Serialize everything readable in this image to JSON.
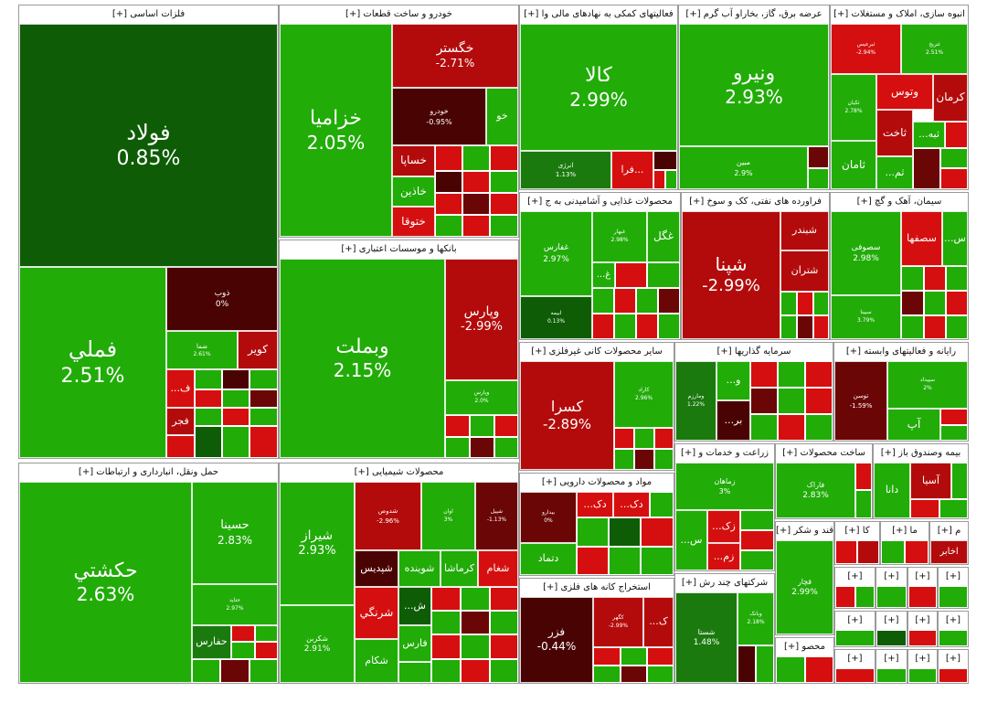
{
  "colors": {
    "green": "#21ac08",
    "dark_green": "#0e5c05",
    "red": "#d50f0f",
    "dark_red": "#6a0606"
  },
  "sectors": {
    "basic_metals": "فلزات اساسی [+]",
    "auto": "خودرو و ساخت قطعات [+]",
    "finance_aux": "فعالیتهای کمکی به نهادهای مالی وا [+]",
    "utilities": "عرضه برق، گاز، بخاراو آب گرم [+]",
    "construction": "انبوه سازی، املاک و مستغلات [+]",
    "banks": "بانکها و موسسات اعتباری [+]",
    "food": "محصولات غذایی و آشامیدنی به ج [+]",
    "refinery": "فراورده های نفتی، کک و سوخ [+]",
    "cement": "سیمان، آهک و گچ [+]",
    "nonmetal": "سایر محصولات کانی غیرفلزی [+]",
    "investment": "سرمایه گذاریها [+]",
    "computer": "رایانه و فعالیتهای وابسته [+]",
    "transport": "حمل ونقل، انبارداری و ارتباطات [+]",
    "chemical": "محصولات شیمیایی [+]",
    "pharma": "مواد و محصولات دارویی [+]",
    "agriculture": "زراعت و خدمات و [+]",
    "other_products": "ساخت محصولات [+]",
    "insurance": "بیمه وصندوق باز [+]",
    "mining": "استخراج کانه های فلزی [+]",
    "multi": "شرکتهای چند رش [+]",
    "sugar": "قند و شکر [+]",
    "sec_ka": "کا [+]",
    "sec_ma": "ما [+]",
    "sec_m": "م [+]",
    "plus": "[+]",
    "plus_mahsu": "محصو [+]",
    "plus_dba": "دبا [+]"
  },
  "tiles": {
    "foolad": {
      "name": "فولاد",
      "pct": "0.85%"
    },
    "fameli": {
      "name": "فملي",
      "pct": "2.51%"
    },
    "zob": {
      "name": "ذوب",
      "pct": "0%"
    },
    "kavir": {
      "name": "کویر"
    },
    "hesa": {
      "name": "ضما",
      "pct": "2.61%"
    },
    "f": {
      "name": "...ف"
    },
    "fajr": {
      "name": "فجر"
    },
    "khazamia": {
      "name": "خزامیا",
      "pct": "2.05%"
    },
    "khegostar": {
      "name": "خگستر",
      "pct": "-2.71%"
    },
    "khodro": {
      "name": "خودرو",
      "pct": "-0.95%"
    },
    "kho": {
      "name": "خو"
    },
    "khsapa": {
      "name": "خساپا"
    },
    "khaneyn": {
      "name": "خاذین"
    },
    "khtoga": {
      "name": "ختوقا"
    },
    "kala": {
      "name": "کالا",
      "pct": "2.99%"
    },
    "enerzhi": {
      "name": "انرژی",
      "pct": "1.13%"
    },
    "fara": {
      "name": "فرا..."
    },
    "vniro": {
      "name": "ونیرو",
      "pct": "2.93%"
    },
    "mobin": {
      "name": "مبین",
      "pct": "2.9%"
    },
    "terbimes": {
      "name": "ثبرعیس",
      "pct": "-2.94%"
    },
    "tasrigh": {
      "name": "ثتریخ",
      "pct": "2.51%"
    },
    "kerman": {
      "name": "کرمان"
    },
    "vetus": {
      "name": "وتوس"
    },
    "tbe": {
      "name": "...ثبه"
    },
    "tahat": {
      "name": "ثاخت"
    },
    "tamam": {
      "name": "ثامان"
    },
    "tm": {
      "name": "...ثم"
    },
    "tkeyn": {
      "name": "ثکیان",
      "pct": "2.78%"
    },
    "vbmelat": {
      "name": "وبملت",
      "pct": "2.15%"
    },
    "vpars": {
      "name": "وپارس",
      "pct": "-2.99%"
    },
    "vbmalat2": {
      "name": "وپارس",
      "pct": "2.0%"
    },
    "ghfars": {
      "name": "غفارس",
      "pct": "2.97%"
    },
    "ghgol": {
      "name": "غگل"
    },
    "behmelt": {
      "name": "غبهار",
      "pct": "2.98%"
    },
    "gh": {
      "name": "...غ"
    },
    "abaneh": {
      "name": "ابیمه",
      "pct": "0.13%"
    },
    "shpana": {
      "name": "شپنا",
      "pct": "-2.99%"
    },
    "shbandar": {
      "name": "شبندر"
    },
    "shtran": {
      "name": "شتران"
    },
    "sfoufi": {
      "name": "سصوفی",
      "pct": "2.98%"
    },
    "sfahan": {
      "name": "سصفها"
    },
    "ss": {
      "name": "...س"
    },
    "sbina": {
      "name": "سبینا",
      "pct": "3.79%"
    },
    "kesra": {
      "name": "کسرا",
      "pct": "-2.89%"
    },
    "kalz": {
      "name": "کاراد",
      "pct": "2.96%"
    },
    "vmarzan": {
      "name": "ومارزم",
      "pct": "1.22%"
    },
    "vo": {
      "name": "...و"
    },
    "br": {
      "name": "...بر"
    },
    "tosn": {
      "name": "توسن",
      "pct": "-1.59%"
    },
    "sepid": {
      "name": "سپیداد",
      "pct": "2%"
    },
    "ap": {
      "name": "آپ"
    },
    "hakshti": {
      "name": "حکشتي",
      "pct": "2.63%"
    },
    "hsina": {
      "name": "حسینا",
      "pct": "2.83%"
    },
    "hpars": {
      "name": "حفارس"
    },
    "htide": {
      "name": "حتاید",
      "pct": "2.97%"
    },
    "shiraz": {
      "name": "شیراز",
      "pct": "2.93%"
    },
    "shdous": {
      "name": "شدوص",
      "pct": "-2.96%"
    },
    "shavam": {
      "name": "اوان",
      "pct": "3%"
    },
    "shsepol": {
      "name": "شپیل",
      "pct": "-1.13%"
    },
    "shpdis": {
      "name": "شپدیس"
    },
    "shvineh": {
      "name": "شوینده"
    },
    "kermasha": {
      "name": "کرماشا"
    },
    "shgam": {
      "name": "شغام"
    },
    "shrangi": {
      "name": "شرنگي"
    },
    "shkarbon": {
      "name": "شکربن",
      "pct": "2.91%"
    },
    "shkam": {
      "name": "شکام"
    },
    "fars": {
      "name": "فارس"
    },
    "sh2": {
      "name": "...ش"
    },
    "bdarou": {
      "name": "بیدارو",
      "pct": "0%"
    },
    "dk1": {
      "name": "...دک"
    },
    "dk2": {
      "name": "...دک"
    },
    "dtmad": {
      "name": "دتماد"
    },
    "zmahan": {
      "name": "زماهان",
      "pct": "3%"
    },
    "zk": {
      "name": "...زک"
    },
    "zm": {
      "name": "...زم"
    },
    "s2": {
      "name": "...س"
    },
    "faraak": {
      "name": "فاراک",
      "pct": "2.83%"
    },
    "asia": {
      "name": "آسیا"
    },
    "dana": {
      "name": "دانا"
    },
    "kakhbar": {
      "name": "اخابر"
    },
    "fzr": {
      "name": "فزر",
      "pct": "-0.44%"
    },
    "kgohar": {
      "name": "کگهر",
      "pct": "-2.99%"
    },
    "k": {
      "name": "...ک"
    },
    "shasta": {
      "name": "شستا",
      "pct": "1.48%"
    },
    "vbank": {
      "name": "وبانک",
      "pct": "2.18%"
    },
    "ghjar": {
      "name": "قچار",
      "pct": "2.99%"
    }
  }
}
